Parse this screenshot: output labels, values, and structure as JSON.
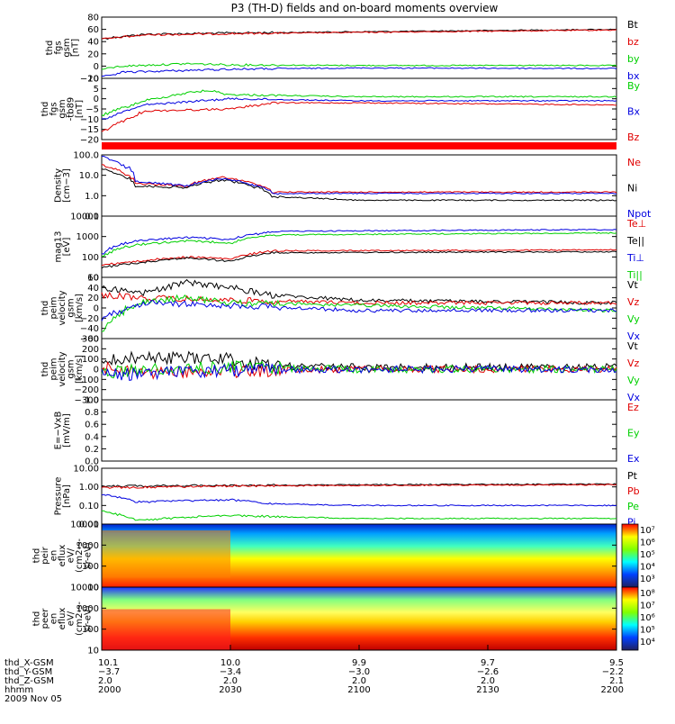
{
  "title": "P3 (TH-D) fields and on-board moments overview",
  "colors": {
    "black": "#000000",
    "red": "#e00000",
    "green": "#00d000",
    "blue": "#0000e0"
  },
  "chart_data": [
    {
      "type": "line",
      "ylabel": [
        "thd",
        "fgs",
        "gsm",
        "[nT]"
      ],
      "yticks": [
        "80",
        "60",
        "40",
        "20",
        "0",
        "−20"
      ],
      "legend": [
        {
          "name": "Bt",
          "color": "black"
        },
        {
          "name": "bz",
          "color": "red"
        },
        {
          "name": "by",
          "color": "green"
        },
        {
          "name": "bx",
          "color": "blue"
        }
      ],
      "series": [
        {
          "name": "Bt",
          "color": "black",
          "x": [
            2000,
            2010,
            2030,
            2100,
            2130,
            2200
          ],
          "y": [
            45,
            52,
            54,
            56,
            58,
            60
          ]
        },
        {
          "name": "bz",
          "color": "red",
          "x": [
            2000,
            2010,
            2030,
            2100,
            2130,
            2200
          ],
          "y": [
            44,
            51,
            53,
            55,
            57,
            59
          ]
        },
        {
          "name": "by",
          "color": "green",
          "x": [
            2000,
            2005,
            2020,
            2030,
            2100,
            2200
          ],
          "y": [
            -5,
            0,
            4,
            2,
            1,
            1
          ]
        },
        {
          "name": "bx",
          "color": "blue",
          "x": [
            2000,
            2005,
            2030,
            2100,
            2200
          ],
          "y": [
            -18,
            -10,
            -5,
            -3,
            -4
          ]
        }
      ]
    },
    {
      "type": "line",
      "ylabel": [
        "thd",
        "fgs",
        "gsm",
        "-tb89",
        "[nT]"
      ],
      "yticks": [
        "10",
        "5",
        "0",
        "−5",
        "−10",
        "−15",
        "−20"
      ],
      "legend": [
        {
          "name": "By",
          "color": "green"
        },
        {
          "name": "Bx",
          "color": "blue"
        },
        {
          "name": "Bz",
          "color": "red"
        }
      ],
      "series": [
        {
          "name": "By",
          "color": "green",
          "x": [
            2000,
            2010,
            2020,
            2025,
            2030,
            2100,
            2200
          ],
          "y": [
            -8,
            -1,
            3,
            4,
            2,
            1,
            1
          ]
        },
        {
          "name": "Bx",
          "color": "blue",
          "x": [
            2000,
            2010,
            2030,
            2100,
            2200
          ],
          "y": [
            -10,
            -3,
            0,
            -1,
            -1
          ]
        },
        {
          "name": "Bz",
          "color": "red",
          "x": [
            2000,
            2010,
            2030,
            2040,
            2100,
            2200
          ],
          "y": [
            -16,
            -6,
            -5,
            -2,
            -2,
            -3
          ]
        }
      ]
    },
    {
      "type": "line",
      "ylabel": [
        "Density",
        "[cm−3]"
      ],
      "yticks": [
        "100.0",
        "10.0",
        "1.0",
        "0.1"
      ],
      "legend": [
        {
          "name": "Ne",
          "color": "red"
        },
        {
          "name": "Ni",
          "color": "black"
        },
        {
          "name": "Npot",
          "color": "blue"
        }
      ],
      "series": [
        {
          "name": "Ne",
          "color": "red",
          "x": [
            2000,
            2008,
            2020,
            2028,
            2040,
            2200
          ],
          "y": [
            30,
            4,
            3,
            8,
            1.5,
            1.5
          ]
        },
        {
          "name": "Ni",
          "color": "black",
          "x": [
            2000,
            2008,
            2020,
            2028,
            2040,
            2100,
            2200
          ],
          "y": [
            20,
            3,
            2.5,
            6,
            0.9,
            0.6,
            0.6
          ]
        },
        {
          "name": "Npot",
          "color": "blue",
          "x": [
            2000,
            2008,
            2020,
            2028,
            2040,
            2200
          ],
          "y": [
            80,
            5,
            3,
            7,
            1.3,
            1.3
          ]
        }
      ]
    },
    {
      "type": "line",
      "ylabel": [
        "mag13",
        "[eV]"
      ],
      "yticks": [
        "10000",
        "1000",
        "100",
        "10"
      ],
      "legend": [
        {
          "name": "Te⊥",
          "color": "red"
        },
        {
          "name": "Te||",
          "color": "black"
        },
        {
          "name": "Ti⊥",
          "color": "blue"
        },
        {
          "name": "Ti||",
          "color": "green"
        }
      ],
      "series": [
        {
          "name": "Te⊥",
          "color": "red",
          "x": [
            2000,
            2008,
            2020,
            2030,
            2040,
            2200
          ],
          "y": [
            40,
            60,
            100,
            80,
            200,
            220
          ]
        },
        {
          "name": "Te||",
          "color": "black",
          "x": [
            2000,
            2008,
            2020,
            2030,
            2040,
            2200
          ],
          "y": [
            30,
            50,
            90,
            60,
            160,
            180
          ]
        },
        {
          "name": "Ti⊥",
          "color": "blue",
          "x": [
            2000,
            2008,
            2020,
            2030,
            2040,
            2200
          ],
          "y": [
            150,
            600,
            900,
            700,
            1800,
            2200
          ]
        },
        {
          "name": "Ti||",
          "color": "green",
          "x": [
            2000,
            2008,
            2020,
            2030,
            2040,
            2200
          ],
          "y": [
            100,
            400,
            600,
            500,
            1200,
            1500
          ]
        }
      ]
    },
    {
      "type": "line",
      "ylabel": [
        "thd",
        "peim",
        "velocity",
        "gsm",
        "[km/s]"
      ],
      "yticks": [
        "60",
        "40",
        "20",
        "0",
        "−20",
        "−40",
        "−60"
      ],
      "legend": [
        {
          "name": "Vt",
          "color": "black"
        },
        {
          "name": "Vz",
          "color": "red"
        },
        {
          "name": "Vy",
          "color": "green"
        },
        {
          "name": "Vx",
          "color": "blue"
        }
      ],
      "series": [
        {
          "name": "Vt",
          "color": "black",
          "x": [
            2000,
            2010,
            2020,
            2030,
            2040,
            2100,
            2200
          ],
          "y": [
            40,
            30,
            50,
            40,
            25,
            15,
            10
          ]
        },
        {
          "name": "Vz",
          "color": "red",
          "x": [
            2000,
            2010,
            2030,
            2100,
            2200
          ],
          "y": [
            25,
            20,
            15,
            10,
            10
          ]
        },
        {
          "name": "Vy",
          "color": "green",
          "x": [
            2000,
            2008,
            2020,
            2030,
            2100,
            2200
          ],
          "y": [
            -40,
            10,
            20,
            10,
            5,
            -5
          ]
        },
        {
          "name": "Vx",
          "color": "blue",
          "x": [
            2000,
            2010,
            2030,
            2100,
            2200
          ],
          "y": [
            -20,
            10,
            5,
            -5,
            -5
          ]
        }
      ]
    },
    {
      "type": "line",
      "ylabel": [
        "thd",
        "peim",
        "velocity",
        "gsm",
        "[km/s]"
      ],
      "yticks": [
        "300",
        "200",
        "100",
        "0",
        "−100",
        "−200",
        "−300"
      ],
      "legend": [
        {
          "name": "Vt",
          "color": "black"
        },
        {
          "name": "Vz",
          "color": "red"
        },
        {
          "name": "Vy",
          "color": "green"
        },
        {
          "name": "Vx",
          "color": "blue"
        }
      ],
      "series": [
        {
          "name": "Vt",
          "color": "black",
          "x": [
            2000,
            2010,
            2030,
            2040,
            2100,
            2200
          ],
          "y": [
            80,
            120,
            100,
            30,
            20,
            20
          ]
        },
        {
          "name": "Vz",
          "color": "red",
          "x": [
            2000,
            2010,
            2030,
            2100,
            2200
          ],
          "y": [
            10,
            -30,
            -20,
            0,
            0
          ]
        },
        {
          "name": "Vy",
          "color": "green",
          "x": [
            2000,
            2010,
            2030,
            2100,
            2200
          ],
          "y": [
            -40,
            0,
            20,
            0,
            0
          ]
        },
        {
          "name": "Vx",
          "color": "blue",
          "x": [
            2000,
            2010,
            2030,
            2100,
            2200
          ],
          "y": [
            -60,
            -40,
            -10,
            0,
            0
          ]
        }
      ]
    },
    {
      "type": "line",
      "ylabel": [
        "E=−VxB",
        "[mV/m]"
      ],
      "yticks": [
        "1.0",
        "0.8",
        "0.6",
        "0.4",
        "0.2",
        "0.0"
      ],
      "legend": [
        {
          "name": "Ez",
          "color": "red"
        },
        {
          "name": "Ey",
          "color": "green"
        },
        {
          "name": "Ex",
          "color": "blue"
        }
      ],
      "series": []
    },
    {
      "type": "line",
      "ylabel": [
        "Pressure",
        "[nPa]"
      ],
      "yticks": [
        "10.00",
        "1.00",
        "0.10",
        "0.01"
      ],
      "legend": [
        {
          "name": "Pt",
          "color": "black"
        },
        {
          "name": "Pb",
          "color": "red"
        },
        {
          "name": "Pe",
          "color": "green"
        },
        {
          "name": "Pi",
          "color": "blue"
        }
      ],
      "series": [
        {
          "name": "Pt",
          "color": "black",
          "x": [
            2000,
            2030,
            2100,
            2200
          ],
          "y": [
            1.1,
            1.2,
            1.3,
            1.4
          ]
        },
        {
          "name": "Pb",
          "color": "red",
          "x": [
            2000,
            2030,
            2100,
            2200
          ],
          "y": [
            0.9,
            1.1,
            1.2,
            1.3
          ]
        },
        {
          "name": "Pe",
          "color": "green",
          "x": [
            2000,
            2008,
            2030,
            2040,
            2100,
            2200
          ],
          "y": [
            0.05,
            0.015,
            0.03,
            0.025,
            0.02,
            0.02
          ]
        },
        {
          "name": "Pi",
          "color": "blue",
          "x": [
            2000,
            2008,
            2030,
            2040,
            2100,
            2200
          ],
          "y": [
            0.4,
            0.15,
            0.2,
            0.12,
            0.1,
            0.1
          ]
        }
      ]
    },
    {
      "type": "heatmap",
      "ylabel": [
        "thd",
        "peir",
        "en",
        "eflux",
        "eV/",
        "(cm2-s-",
        "sr-eV)"
      ],
      "yticks": [
        "10000",
        "1000",
        "100",
        "10"
      ],
      "colorbar_ticks": [
        "10⁷",
        "10⁶",
        "10⁵",
        "10⁴",
        "10³"
      ]
    },
    {
      "type": "heatmap",
      "ylabel": [
        "thd",
        "peer",
        "en",
        "eflux",
        "eV/",
        "(cm2-s-",
        "sr-eV)"
      ],
      "yticks": [
        "10000",
        "1000",
        "100",
        "10"
      ],
      "colorbar_ticks": [
        "10⁸",
        "10⁷",
        "10⁶",
        "10⁵",
        "10⁴"
      ]
    }
  ],
  "x_axis": {
    "row_labels": [
      "thd_X-GSM",
      "thd_Y-GSM",
      "thd_Z-GSM",
      "hhmm",
      "2009 Nov 05"
    ],
    "ticks": [
      {
        "x": "10.1",
        "y": "−3.7",
        "z": "2.0",
        "t": "2000"
      },
      {
        "x": "10.0",
        "y": "−3.4",
        "z": "2.0",
        "t": "2030"
      },
      {
        "x": "9.9",
        "y": "−3.0",
        "z": "2.0",
        "t": "2100"
      },
      {
        "x": "9.7",
        "y": "−2.6",
        "z": "2.0",
        "t": "2130"
      },
      {
        "x": "9.5",
        "y": "−2.2",
        "z": "2.1",
        "t": "2200"
      }
    ]
  }
}
